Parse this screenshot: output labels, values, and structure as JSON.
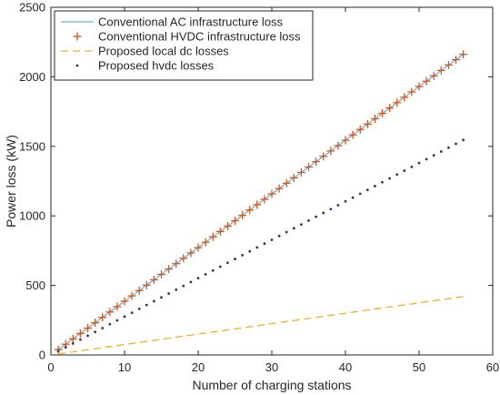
{
  "chart_data": {
    "type": "line",
    "title": "",
    "xlabel": "Number of charging stations",
    "ylabel": "Power loss (kW)",
    "xlim": [
      0,
      60
    ],
    "ylim": [
      0,
      2500
    ],
    "xticks": [
      0,
      10,
      20,
      30,
      40,
      50,
      60
    ],
    "yticks": [
      0,
      500,
      1000,
      1500,
      2000,
      2500
    ],
    "grid": false,
    "legend_position": "top-left",
    "x": [
      1,
      2,
      3,
      4,
      5,
      6,
      7,
      8,
      9,
      10,
      11,
      12,
      13,
      14,
      15,
      16,
      17,
      18,
      19,
      20,
      21,
      22,
      23,
      24,
      25,
      26,
      27,
      28,
      29,
      30,
      31,
      32,
      33,
      34,
      35,
      36,
      37,
      38,
      39,
      40,
      41,
      42,
      43,
      44,
      45,
      46,
      47,
      48,
      49,
      50,
      51,
      52,
      53,
      54,
      55,
      56
    ],
    "series": [
      {
        "name": "Conventional AC infrastructure loss",
        "style": "line",
        "color": "#4f9fbf",
        "values": [
          38.6,
          77.2,
          115.8,
          154.4,
          193.0,
          231.6,
          270.2,
          308.8,
          347.4,
          386.0,
          424.6,
          463.2,
          501.8,
          540.4,
          579.0,
          617.6,
          656.2,
          694.8,
          733.4,
          772.0,
          810.6,
          849.2,
          887.8,
          926.4,
          965.0,
          1003.6,
          1042.2,
          1080.8,
          1119.4,
          1158.0,
          1196.6,
          1235.2,
          1273.8,
          1312.4,
          1351.0,
          1389.6,
          1428.2,
          1466.8,
          1505.4,
          1544.0,
          1582.6,
          1621.2,
          1659.8,
          1698.4,
          1737.0,
          1775.6,
          1814.2,
          1852.8,
          1891.4,
          1930.0,
          1968.6,
          2007.2,
          2045.8,
          2084.4,
          2123.0,
          2161.6
        ]
      },
      {
        "name": "Conventional HVDC infrastructure loss",
        "style": "plus",
        "color": "#d9541a",
        "values": [
          38.6,
          77.2,
          115.8,
          154.4,
          193.0,
          231.6,
          270.2,
          308.8,
          347.4,
          386.0,
          424.6,
          463.2,
          501.8,
          540.4,
          579.0,
          617.6,
          656.2,
          694.8,
          733.4,
          772.0,
          810.6,
          849.2,
          887.8,
          926.4,
          965.0,
          1003.6,
          1042.2,
          1080.8,
          1119.4,
          1158.0,
          1196.6,
          1235.2,
          1273.8,
          1312.4,
          1351.0,
          1389.6,
          1428.2,
          1466.8,
          1505.4,
          1544.0,
          1582.6,
          1621.2,
          1659.8,
          1698.4,
          1737.0,
          1775.6,
          1814.2,
          1852.8,
          1891.4,
          1930.0,
          1968.6,
          2007.2,
          2045.8,
          2084.4,
          2123.0,
          2161.6
        ]
      },
      {
        "name": "Proposed local dc losses",
        "style": "dashed",
        "color": "#edb120",
        "values": [
          7.5,
          15.0,
          22.5,
          30.0,
          37.5,
          45.0,
          52.5,
          60.0,
          67.5,
          75.0,
          82.5,
          90.0,
          97.5,
          105.0,
          112.5,
          120.0,
          127.5,
          135.0,
          142.5,
          150.0,
          157.5,
          165.0,
          172.5,
          180.0,
          187.5,
          195.0,
          202.5,
          210.0,
          217.5,
          225.0,
          232.5,
          240.0,
          247.5,
          255.0,
          262.5,
          270.0,
          277.5,
          285.0,
          292.5,
          300.0,
          307.5,
          315.0,
          322.5,
          330.0,
          337.5,
          345.0,
          352.5,
          360.0,
          367.5,
          375.0,
          382.5,
          390.0,
          397.5,
          405.0,
          412.5,
          420.0
        ]
      },
      {
        "name": "Proposed hvdc losses",
        "style": "dotted",
        "color": "#3b2a78",
        "values": [
          27.6,
          55.2,
          82.8,
          110.4,
          138.0,
          165.6,
          193.2,
          220.8,
          248.4,
          276.0,
          303.6,
          331.2,
          358.8,
          386.4,
          414.0,
          441.6,
          469.2,
          496.8,
          524.4,
          552.0,
          579.6,
          607.2,
          634.8,
          662.4,
          690.0,
          717.6,
          745.2,
          772.8,
          800.4,
          828.0,
          855.6,
          883.2,
          910.8,
          938.4,
          966.0,
          993.6,
          1021.2,
          1048.8,
          1076.4,
          1104.0,
          1131.6,
          1159.2,
          1186.8,
          1214.4,
          1242.0,
          1269.6,
          1297.2,
          1324.8,
          1352.4,
          1380.0,
          1407.6,
          1435.2,
          1462.8,
          1490.4,
          1518.0,
          1545.6
        ]
      }
    ]
  }
}
